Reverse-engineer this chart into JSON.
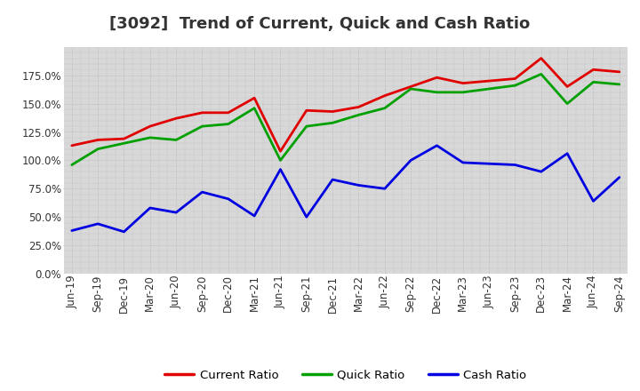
{
  "title": "[3092]  Trend of Current, Quick and Cash Ratio",
  "labels": [
    "Jun-19",
    "Sep-19",
    "Dec-19",
    "Mar-20",
    "Jun-20",
    "Sep-20",
    "Dec-20",
    "Mar-21",
    "Jun-21",
    "Sep-21",
    "Dec-21",
    "Mar-22",
    "Jun-22",
    "Sep-22",
    "Dec-22",
    "Mar-23",
    "Jun-23",
    "Sep-23",
    "Dec-23",
    "Mar-24",
    "Jun-24",
    "Sep-24"
  ],
  "current_ratio": [
    1.13,
    1.18,
    1.19,
    1.3,
    1.37,
    1.42,
    1.42,
    1.55,
    1.08,
    1.44,
    1.43,
    1.47,
    1.57,
    1.65,
    1.73,
    1.68,
    1.7,
    1.72,
    1.9,
    1.65,
    1.8,
    1.78
  ],
  "quick_ratio": [
    0.96,
    1.1,
    1.15,
    1.2,
    1.18,
    1.3,
    1.32,
    1.46,
    1.0,
    1.3,
    1.33,
    1.4,
    1.46,
    1.63,
    1.6,
    1.6,
    1.63,
    1.66,
    1.76,
    1.5,
    1.69,
    1.67
  ],
  "cash_ratio": [
    0.38,
    0.44,
    0.37,
    0.58,
    0.54,
    0.72,
    0.66,
    0.51,
    0.92,
    0.5,
    0.83,
    0.78,
    0.75,
    1.0,
    1.13,
    0.98,
    0.97,
    0.96,
    0.9,
    1.06,
    0.64,
    0.85
  ],
  "current_color": "#e00000",
  "quick_color": "#00a000",
  "cash_color": "#0000e0",
  "bg_color": "#ffffff",
  "plot_bg_color": "#d8d8d8",
  "ylim": [
    0.0,
    2.0
  ],
  "yticks": [
    0.0,
    0.25,
    0.5,
    0.75,
    1.0,
    1.25,
    1.5,
    1.75
  ],
  "title_color": "#333333",
  "title_fontsize": 13,
  "tick_fontsize": 8.5,
  "legend_fontsize": 9.5,
  "linewidth": 2.0
}
